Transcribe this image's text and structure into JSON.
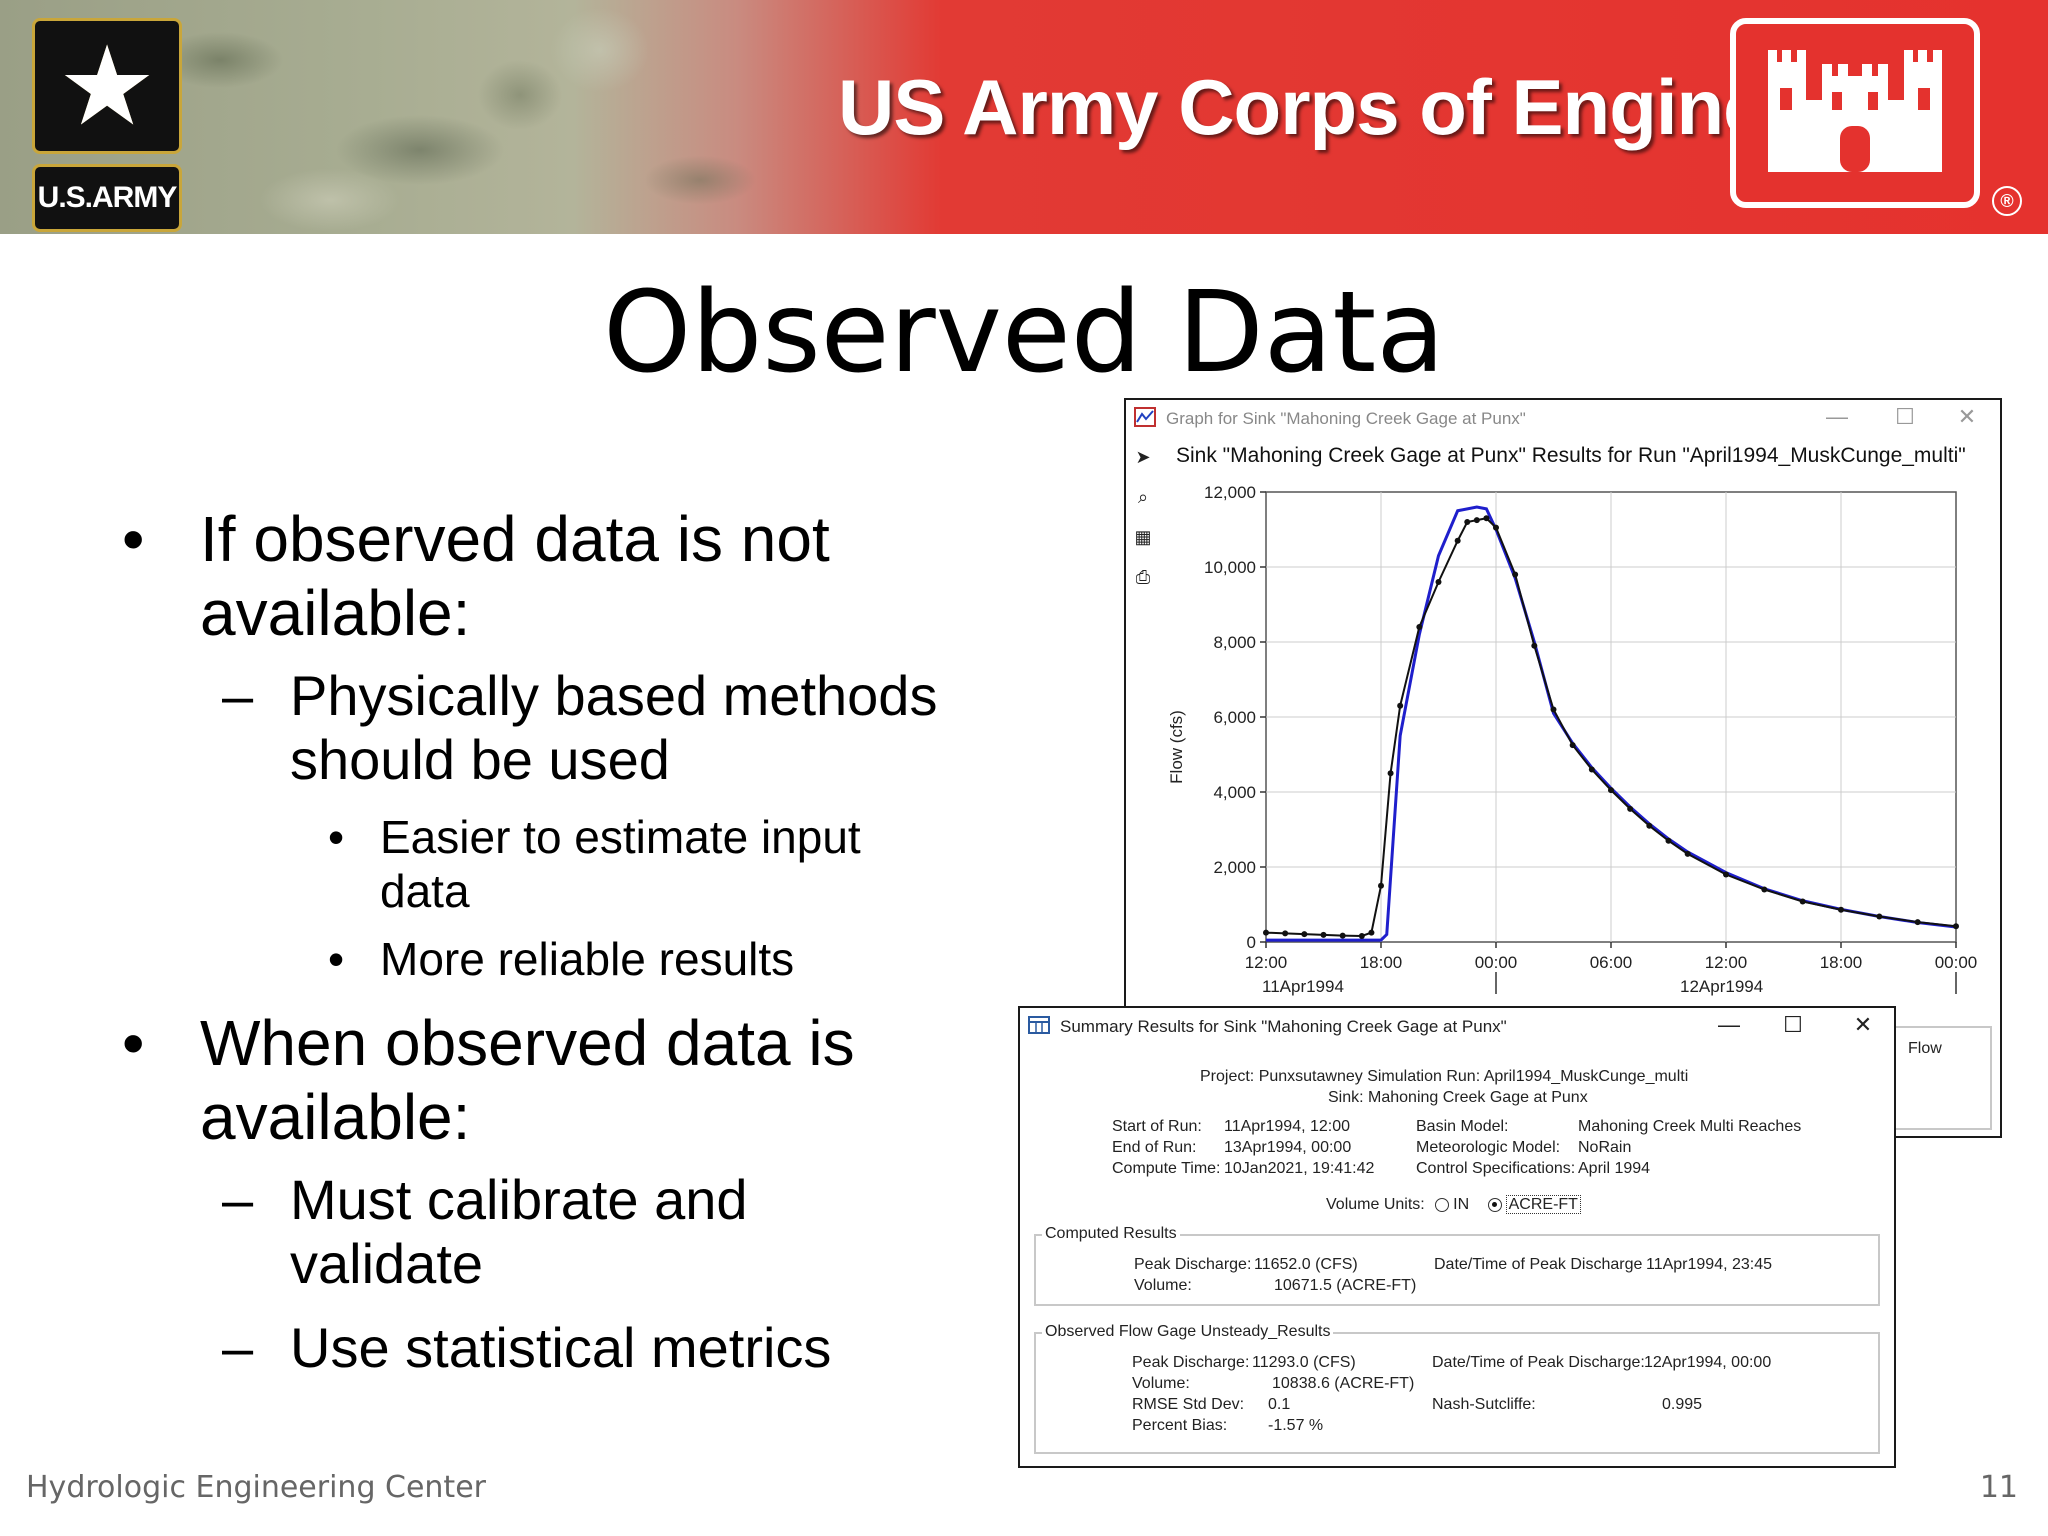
{
  "banner": {
    "brand_text": "US Army Corps of Engineers",
    "army_text": "U.S.ARMY",
    "registered": "®"
  },
  "slide": {
    "title": "Observed Data",
    "bullets": [
      {
        "line1": "If observed data is not",
        "line2": "available:"
      },
      {
        "line1": "Physically based methods",
        "line2": "should be used"
      },
      {
        "line1": "Easier to estimate input",
        "line2": "data"
      },
      {
        "line1": "More reliable results"
      },
      {
        "line1": "When observed data is",
        "line2": "available:"
      },
      {
        "line1": "Must calibrate and",
        "line2": "validate"
      },
      {
        "line1": "Use statistical metrics"
      }
    ],
    "markers": {
      "level1": "•",
      "level2": "–",
      "level3": "•"
    },
    "footer_left": "Hydrologic Engineering Center",
    "page_number": "11"
  },
  "graph_window": {
    "title": "Graph for Sink \"Mahoning Creek Gage at Punx\"",
    "heading": "Sink \"Mahoning Creek Gage at Punx\" Results for Run \"April1994_MuskCunge_multi\"",
    "legend_fragment": "Flow",
    "tools": [
      "pointer-icon",
      "zoom-icon",
      "properties-icon",
      "print-icon"
    ]
  },
  "chart_data": {
    "type": "line",
    "ylabel": "Flow (cfs)",
    "ylim": [
      0,
      12000
    ],
    "yticks": [
      "0",
      "2,000",
      "4,000",
      "6,000",
      "8,000",
      "10,000",
      "12,000"
    ],
    "xlim_hours": [
      0,
      36
    ],
    "xticks": [
      "12:00",
      "18:00",
      "00:00",
      "06:00",
      "12:00",
      "18:00",
      "00:00"
    ],
    "xdates": [
      "11Apr1994",
      "12Apr1994"
    ],
    "colors": {
      "computed": "#1f1fcc",
      "observed": "#111111",
      "grid": "#cccccc"
    },
    "series": [
      {
        "x": [
          0,
          6,
          6.3,
          7,
          8,
          9,
          10,
          11,
          11.5,
          12,
          13,
          14,
          15,
          16,
          17,
          18,
          19,
          20,
          21,
          22,
          24,
          26,
          28,
          30,
          32,
          34,
          36
        ],
        "values": [
          50,
          50,
          200,
          5500,
          8200,
          10300,
          11500,
          11600,
          11550,
          11000,
          9700,
          8000,
          6100,
          5300,
          4650,
          4100,
          3600,
          3150,
          2750,
          2400,
          1850,
          1420,
          1100,
          870,
          680,
          520,
          400
        ]
      },
      {
        "x": [
          0,
          1,
          2,
          3,
          4,
          5,
          5.5,
          6,
          6.5,
          7,
          8,
          9,
          10,
          10.5,
          11,
          11.5,
          12,
          13,
          14,
          15,
          16,
          17,
          18,
          19,
          20,
          21,
          22,
          24,
          26,
          28,
          30,
          32,
          34,
          36
        ],
        "values": [
          250,
          230,
          210,
          190,
          170,
          160,
          250,
          1500,
          4500,
          6300,
          8400,
          9600,
          10700,
          11200,
          11250,
          11300,
          11050,
          9800,
          7900,
          6200,
          5250,
          4600,
          4050,
          3550,
          3100,
          2700,
          2350,
          1800,
          1400,
          1080,
          860,
          680,
          530,
          420
        ]
      }
    ]
  },
  "summary_window": {
    "title": "Summary Results for Sink \"Mahoning Creek Gage at Punx\"",
    "project_line": "Project: Punxsutawney      Simulation Run: April1994_MuskCunge_multi",
    "sink_line": "Sink: Mahoning Creek Gage at Punx",
    "left_labels": [
      "Start of Run:",
      "End of Run:",
      "Compute Time:"
    ],
    "left_values": [
      "11Apr1994, 12:00",
      "13Apr1994, 00:00",
      "10Jan2021, 19:41:42"
    ],
    "right_labels": [
      "Basin Model:",
      "Meteorologic Model:",
      "Control Specifications:"
    ],
    "right_values": [
      "Mahoning Creek Multi Reaches",
      "NoRain",
      "April 1994"
    ],
    "volume_units_label": "Volume Units:",
    "volume_option_in": "IN",
    "volume_option_acre": "ACRE-FT",
    "computed": {
      "label": "Computed Results",
      "peak_label": "Peak Discharge:",
      "peak_value": "11652.0 (CFS)",
      "volume_label": "Volume:",
      "volume_value": "10671.5 (ACRE-FT)",
      "date_label": "Date/Time of Peak Discharge",
      "date_value": "11Apr1994, 23:45"
    },
    "observed": {
      "label": "Observed Flow Gage Unsteady_Results",
      "peak_label": "Peak Discharge:",
      "peak_value": "11293.0 (CFS)",
      "volume_label": "Volume:",
      "volume_value": "10838.6 (ACRE-FT)",
      "rmse_label": "RMSE Std Dev:",
      "rmse_value": "0.1",
      "bias_label": "Percent Bias:",
      "bias_value": "-1.57 %",
      "date_label": "Date/Time of Peak Discharge:",
      "date_value": "12Apr1994, 00:00",
      "nash_label": "Nash-Sutcliffe:",
      "nash_value": "0.995"
    }
  }
}
